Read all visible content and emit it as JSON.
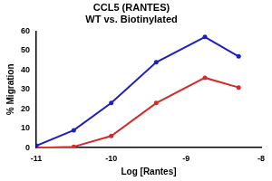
{
  "chart_data": {
    "type": "line",
    "title": "CCL5 (RANTES)",
    "subtitle": "WT vs. Biotinylated",
    "x_label": "Log [Rantes]",
    "y_label": "% Migration",
    "x": [
      -11,
      -10.5,
      -10,
      -9.4,
      -8.75,
      -8.3
    ],
    "series": [
      {
        "color": "#1f1fbf",
        "marker": "circle",
        "values": [
          1,
          9,
          23,
          44,
          57,
          47
        ]
      },
      {
        "color": "#d42a2a",
        "marker": "circle",
        "values": [
          0,
          0.5,
          6,
          23,
          36,
          31
        ]
      }
    ],
    "xlim": [
      -11,
      -8
    ],
    "xticks": [
      -11,
      -10,
      -9,
      -8
    ],
    "ylim": [
      0,
      60
    ],
    "yticks": [
      0,
      10,
      20,
      30,
      40,
      50,
      60
    ],
    "grid": false
  }
}
